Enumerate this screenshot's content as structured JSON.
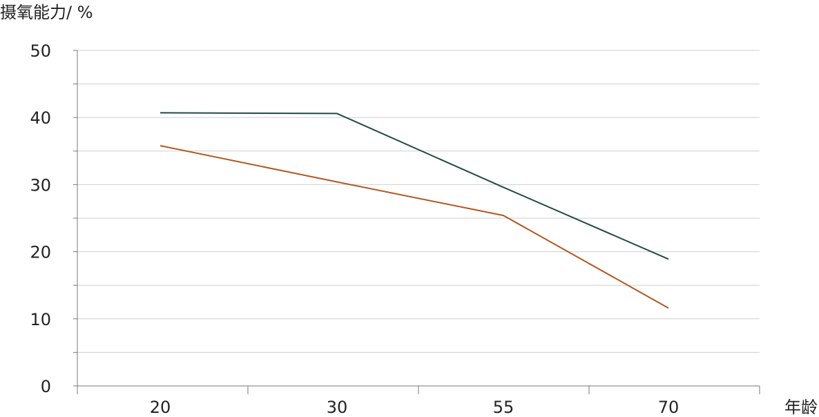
{
  "chart_data": {
    "type": "line",
    "categories": [
      "20",
      "30",
      "55",
      "70"
    ],
    "series": [
      {
        "values": [
          40.7,
          40.6,
          29.6,
          18.9
        ],
        "color": "#1f4a44"
      },
      {
        "values": [
          35.8,
          30.4,
          25.4,
          11.6
        ],
        "color": "#b5541c"
      }
    ],
    "ylabel": "摄氧能力/ %",
    "xlabel": "年龄",
    "ylim": [
      0,
      50
    ],
    "yticks": [
      0,
      10,
      20,
      30,
      40,
      50
    ],
    "grid": true,
    "legend": "none",
    "colors": {
      "grid": "#cfcfcf",
      "axis": "#777777",
      "text": "#222222"
    }
  }
}
